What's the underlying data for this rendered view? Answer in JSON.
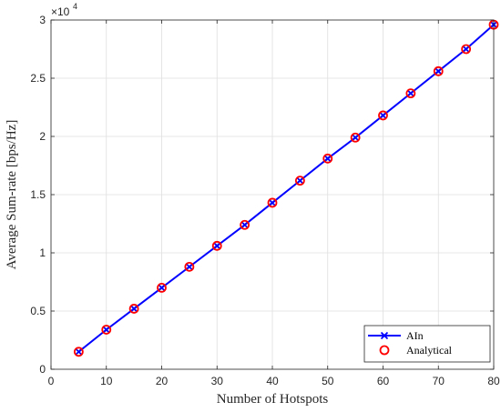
{
  "chart_data": {
    "type": "line",
    "title": "",
    "xlabel": "Number of Hotspots",
    "ylabel": "Average Sum-rate [bps/Hz]",
    "y_multiplier_label": "×10",
    "y_multiplier_exponent": "4",
    "xlim": [
      0,
      80
    ],
    "ylim": [
      0,
      3
    ],
    "xticks": [
      0,
      10,
      20,
      30,
      40,
      50,
      60,
      70,
      80
    ],
    "yticks": [
      0,
      0.5,
      1,
      1.5,
      2,
      2.5,
      3
    ],
    "xtick_labels": [
      "0",
      "10",
      "20",
      "30",
      "40",
      "50",
      "60",
      "70",
      "80"
    ],
    "ytick_labels": [
      "0",
      "0.5",
      "1",
      "1.5",
      "2",
      "2.5",
      "3"
    ],
    "grid": true,
    "legend_position": "bottom-right",
    "x": [
      5,
      10,
      15,
      20,
      25,
      30,
      35,
      40,
      45,
      50,
      55,
      60,
      65,
      70,
      75,
      80
    ],
    "series": [
      {
        "name": "AIn",
        "color": "#0000ff",
        "marker": "x",
        "line": true,
        "values": [
          0.15,
          0.34,
          0.52,
          0.7,
          0.88,
          1.06,
          1.24,
          1.43,
          1.62,
          1.81,
          1.99,
          2.18,
          2.37,
          2.56,
          2.75,
          2.96
        ]
      },
      {
        "name": "Analytical",
        "color": "#ff0000",
        "marker": "o",
        "line": false,
        "values": [
          0.15,
          0.34,
          0.52,
          0.7,
          0.88,
          1.06,
          1.24,
          1.43,
          1.62,
          1.81,
          1.99,
          2.18,
          2.37,
          2.56,
          2.75,
          2.96
        ]
      }
    ]
  }
}
